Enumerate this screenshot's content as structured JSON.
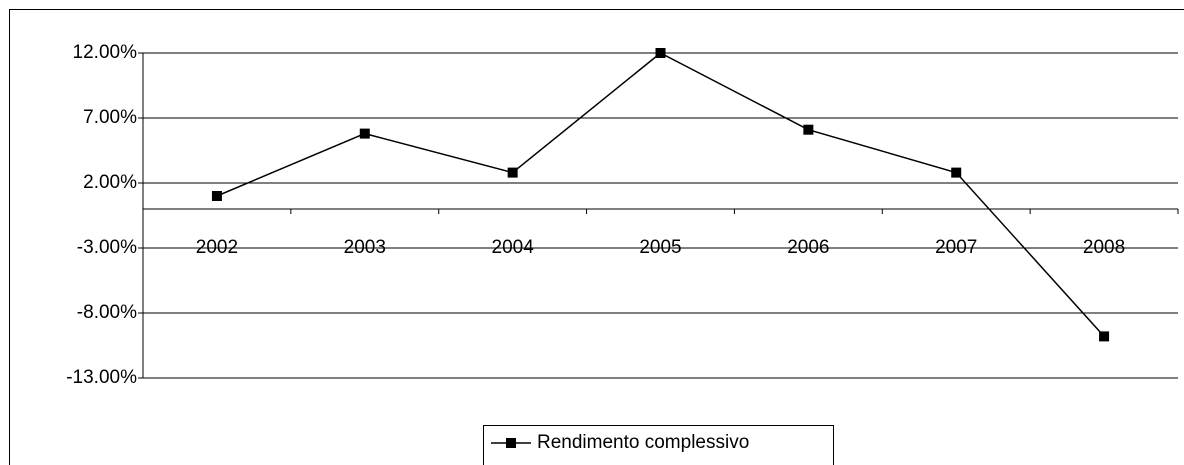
{
  "chart_data": {
    "type": "line",
    "categories": [
      "2002",
      "2003",
      "2004",
      "2005",
      "2006",
      "2007",
      "2008"
    ],
    "series": [
      {
        "name": "Rendimento complessivo",
        "color": "#000000",
        "values": [
          1.0,
          5.8,
          2.8,
          12.0,
          6.1,
          2.8,
          -9.8
        ]
      }
    ],
    "ylim": [
      -13,
      12
    ],
    "yticks": [
      {
        "value": -13,
        "label": "-13.00%"
      },
      {
        "value": -8,
        "label": "-8.00%"
      },
      {
        "value": -3,
        "label": "-3.00%"
      },
      {
        "value": 2,
        "label": "2.00%"
      },
      {
        "value": 7,
        "label": "7.00%"
      },
      {
        "value": 12,
        "label": "12.00%"
      }
    ],
    "grid": true,
    "legend": "bottom"
  }
}
